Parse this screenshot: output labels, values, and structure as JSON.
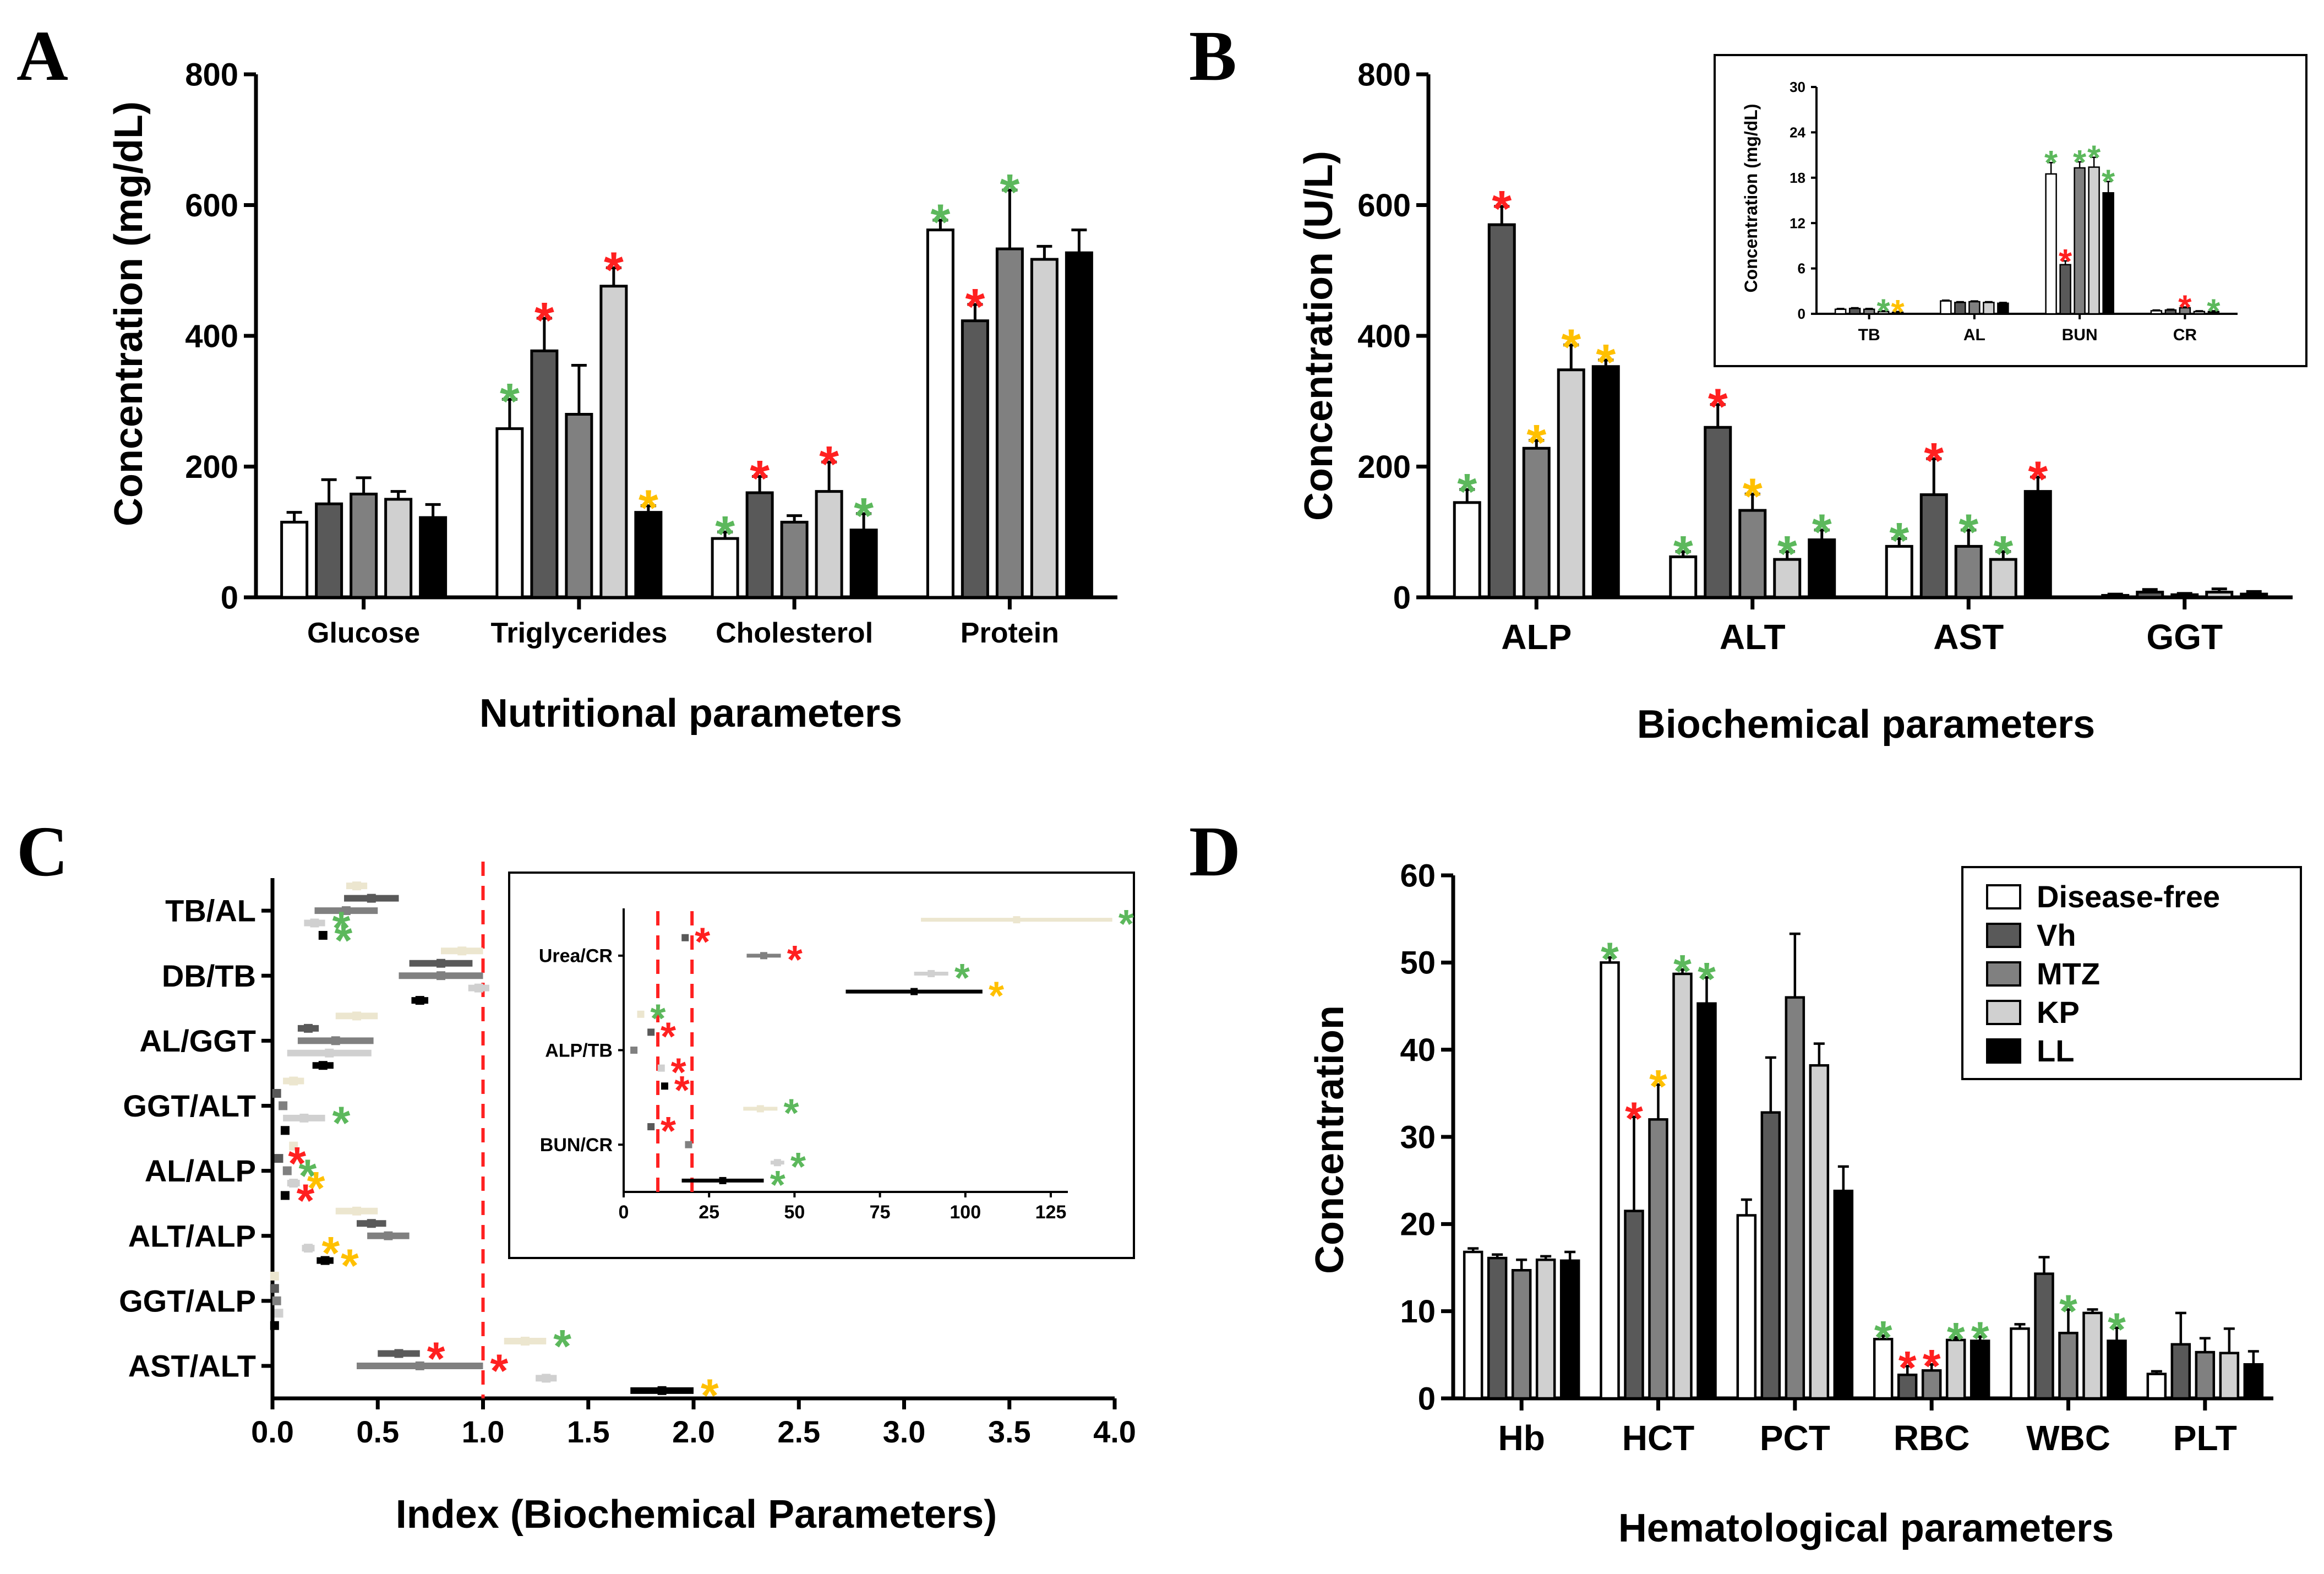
{
  "series_colors": {
    "Disease-free": "#ffffff",
    "Vh": "#595959",
    "MTZ": "#808080",
    "KP": "#d0d0d0",
    "LL": "#000000"
  },
  "star_colors": {
    "green": "#5cb85c",
    "red": "#ff2020",
    "yellow": "#ffc000"
  },
  "reference_line_color": "#ff2020",
  "chart_data": [
    {
      "panel": "A",
      "type": "bar",
      "xlabel": "Nutritional parameters",
      "ylabel": "Concentration (mg/dL)",
      "ylim": [
        0,
        800
      ],
      "yticks": [
        0,
        200,
        400,
        600,
        800
      ],
      "categories": [
        "Glucose",
        "Triglycerides",
        "Cholesterol",
        "Protein"
      ],
      "series": [
        {
          "name": "Disease-free",
          "values": [
            115,
            258,
            90,
            562
          ],
          "errors": [
            15,
            45,
            10,
            15
          ],
          "stars": [
            "",
            "green",
            "green",
            "green"
          ]
        },
        {
          "name": "Vh",
          "values": [
            143,
            377,
            160,
            423
          ],
          "errors": [
            37,
            50,
            25,
            25
          ],
          "stars": [
            "",
            "red",
            "red",
            "red"
          ]
        },
        {
          "name": "MTZ",
          "values": [
            158,
            280,
            115,
            533
          ],
          "errors": [
            25,
            75,
            10,
            90
          ],
          "stars": [
            "",
            "",
            "",
            "green"
          ]
        },
        {
          "name": "KP",
          "values": [
            150,
            476,
            162,
            517
          ],
          "errors": [
            12,
            28,
            45,
            20
          ],
          "stars": [
            "",
            "red",
            "red",
            ""
          ]
        },
        {
          "name": "LL",
          "values": [
            122,
            130,
            103,
            527
          ],
          "errors": [
            20,
            10,
            25,
            35
          ],
          "stars": [
            "",
            "yellow",
            "green",
            ""
          ]
        }
      ]
    },
    {
      "panel": "B",
      "type": "bar",
      "xlabel": "Biochemical parameters",
      "ylabel": "Concentration (U/L)",
      "ylim": [
        0,
        800
      ],
      "yticks": [
        0,
        200,
        400,
        600,
        800
      ],
      "categories": [
        "ALP",
        "ALT",
        "AST",
        "GGT"
      ],
      "series": [
        {
          "name": "Disease-free",
          "values": [
            145,
            62,
            78,
            3
          ],
          "errors": [
            20,
            8,
            12,
            2
          ],
          "stars": [
            "green",
            "green",
            "green",
            ""
          ]
        },
        {
          "name": "Vh",
          "values": [
            570,
            260,
            157,
            8
          ],
          "errors": [
            28,
            35,
            55,
            4
          ],
          "stars": [
            "red",
            "red",
            "red",
            ""
          ]
        },
        {
          "name": "MTZ",
          "values": [
            228,
            133,
            78,
            4
          ],
          "errors": [
            12,
            25,
            25,
            2
          ],
          "stars": [
            "yellow",
            "yellow",
            "green",
            ""
          ]
        },
        {
          "name": "KP",
          "values": [
            348,
            58,
            58,
            8
          ],
          "errors": [
            38,
            12,
            12,
            5
          ],
          "stars": [
            "yellow",
            "green",
            "green",
            ""
          ]
        },
        {
          "name": "LL",
          "values": [
            353,
            88,
            162,
            5
          ],
          "errors": [
            10,
            15,
            22,
            4
          ],
          "stars": [
            "yellow",
            "green",
            "red",
            ""
          ]
        }
      ]
    },
    {
      "panel": "B-inset",
      "type": "bar",
      "ylabel": "Concentration (mg/dL)",
      "ylim": [
        0,
        30
      ],
      "yticks": [
        0,
        6,
        12,
        18,
        24,
        30
      ],
      "categories": [
        "TB",
        "AL",
        "BUN",
        "CR"
      ],
      "series": [
        {
          "name": "Disease-free",
          "values": [
            0.6,
            1.7,
            18.5,
            0.4
          ],
          "errors": [
            0.1,
            0.1,
            1.5,
            0.1
          ],
          "stars": [
            "",
            "",
            "green",
            ""
          ]
        },
        {
          "name": "Vh",
          "values": [
            0.7,
            1.5,
            6.5,
            0.5
          ],
          "errors": [
            0.1,
            0.1,
            0.5,
            0.1
          ],
          "stars": [
            "",
            "",
            "red",
            ""
          ]
        },
        {
          "name": "MTZ",
          "values": [
            0.6,
            1.6,
            19.3,
            0.8
          ],
          "errors": [
            0.1,
            0.1,
            0.8,
            0.1
          ],
          "stars": [
            "",
            "",
            "green",
            "red"
          ]
        },
        {
          "name": "KP",
          "values": [
            0.3,
            1.5,
            19.4,
            0.3
          ],
          "errors": [
            0.1,
            0.1,
            1.3,
            0.1
          ],
          "stars": [
            "green",
            "",
            "green",
            ""
          ]
        },
        {
          "name": "LL",
          "values": [
            0.2,
            1.4,
            16,
            0.3
          ],
          "errors": [
            0.1,
            0.1,
            1.5,
            0.1
          ],
          "stars": [
            "yellow",
            "",
            "green",
            "green"
          ]
        }
      ]
    },
    {
      "panel": "C",
      "type": "scatter",
      "orientation": "horizontal",
      "xlabel": "Index (Biochemical Parameters)",
      "xlim": [
        0,
        4
      ],
      "xticks": [
        "0.0",
        "0.5",
        "1.0",
        "1.5",
        "2.0",
        "2.5",
        "3.0",
        "3.5",
        "4.0"
      ],
      "reference_lines": [
        1.0
      ],
      "categories": [
        "TB/AL",
        "DB/TB",
        "AL/GGT",
        "GGT/ALT",
        "AL/ALP",
        "ALT/ALP",
        "GGT/ALP",
        "AST/ALT"
      ],
      "series": [
        {
          "name": "Disease-free",
          "values": [
            0.4,
            0.9,
            0.4,
            0.1,
            0.1,
            0.4,
            0.01,
            1.2
          ],
          "errors": [
            0.05,
            0.1,
            0.1,
            0.05,
            0.02,
            0.1,
            0.01,
            0.1
          ],
          "stars": [
            "",
            "",
            "",
            "",
            "",
            "",
            "",
            "green"
          ]
        },
        {
          "name": "Vh",
          "values": [
            0.47,
            0.8,
            0.17,
            0.02,
            0.03,
            0.47,
            0.01,
            0.6
          ],
          "errors": [
            0.13,
            0.15,
            0.05,
            0.01,
            0.01,
            0.07,
            0.01,
            0.1
          ],
          "stars": [
            "",
            "",
            "",
            "",
            "red",
            "",
            "",
            "red"
          ]
        },
        {
          "name": "MTZ",
          "values": [
            0.35,
            0.8,
            0.3,
            0.05,
            0.07,
            0.55,
            0.02,
            0.7
          ],
          "errors": [
            0.15,
            0.2,
            0.18,
            0.02,
            0.02,
            0.1,
            0.01,
            0.3
          ],
          "stars": [
            "",
            "",
            "",
            "",
            "green",
            "",
            "",
            "red"
          ]
        },
        {
          "name": "KP",
          "values": [
            0.2,
            0.98,
            0.27,
            0.15,
            0.1,
            0.17,
            0.03,
            1.3
          ],
          "errors": [
            0.05,
            0.05,
            0.2,
            0.1,
            0.03,
            0.03,
            0.01,
            0.05
          ],
          "stars": [
            "green",
            "",
            "",
            "green",
            "yellow",
            "yellow",
            "",
            ""
          ]
        },
        {
          "name": "LL",
          "values": [
            0.24,
            0.7,
            0.24,
            0.06,
            0.06,
            0.25,
            0.01,
            1.85
          ],
          "errors": [
            0.02,
            0.04,
            0.05,
            0.01,
            0.02,
            0.04,
            0.01,
            0.15
          ],
          "stars": [
            "green",
            "",
            "",
            "",
            "red",
            "yellow",
            "",
            "yellow"
          ]
        }
      ]
    },
    {
      "panel": "C-inset",
      "type": "scatter",
      "orientation": "horizontal",
      "xlim": [
        0,
        130
      ],
      "xticks": [
        0,
        25,
        50,
        75,
        100,
        125
      ],
      "reference_lines": [
        10,
        20
      ],
      "categories": [
        "Urea/CR",
        "ALP/TB",
        "BUN/CR"
      ],
      "series": [
        {
          "name": "Disease-free",
          "values": [
            115,
            5,
            40
          ],
          "errors": [
            28,
            1,
            5
          ],
          "stars": [
            "green",
            "green",
            "green"
          ]
        },
        {
          "name": "Vh",
          "values": [
            18,
            8,
            8
          ],
          "errors": [
            1,
            1,
            1
          ],
          "stars": [
            "red",
            "red",
            "red"
          ]
        },
        {
          "name": "MTZ",
          "values": [
            41,
            3,
            19
          ],
          "errors": [
            5,
            1,
            1
          ],
          "stars": [
            "red",
            "",
            ""
          ]
        },
        {
          "name": "KP",
          "values": [
            90,
            11,
            45
          ],
          "errors": [
            5,
            1,
            2
          ],
          "stars": [
            "green",
            "red",
            "green"
          ]
        },
        {
          "name": "LL",
          "values": [
            85,
            12,
            29
          ],
          "errors": [
            20,
            1,
            12
          ],
          "stars": [
            "yellow",
            "red",
            "green"
          ]
        }
      ]
    },
    {
      "panel": "D",
      "type": "bar",
      "xlabel": "Hematological parameters",
      "ylabel": "Concentration",
      "ylim": [
        0,
        60
      ],
      "yticks": [
        0,
        10,
        20,
        30,
        40,
        50,
        60
      ],
      "categories": [
        "Hb",
        "HCT",
        "PCT",
        "RBC",
        "WBC",
        "PLT"
      ],
      "legend": [
        "Disease-free",
        "Vh",
        "MTZ",
        "KP",
        "LL"
      ],
      "legend_position": "top-right",
      "series": [
        {
          "name": "Disease-free",
          "values": [
            16.8,
            50,
            21,
            6.8,
            8,
            2.8
          ],
          "errors": [
            0.4,
            0.6,
            1.8,
            0.4,
            0.5,
            0.3
          ],
          "stars": [
            "",
            "green",
            "",
            "green",
            "",
            ""
          ]
        },
        {
          "name": "Vh",
          "values": [
            16.1,
            21.5,
            32.8,
            2.7,
            14.3,
            6.2
          ],
          "errors": [
            0.4,
            10.8,
            6.3,
            1,
            1.9,
            3.6
          ],
          "stars": [
            "",
            "red",
            "",
            "red",
            "",
            ""
          ]
        },
        {
          "name": "MTZ",
          "values": [
            14.7,
            32,
            46,
            3.2,
            7.5,
            5.3
          ],
          "errors": [
            1.2,
            4,
            7.3,
            0.7,
            2.7,
            1.6
          ],
          "stars": [
            "",
            "yellow",
            "",
            "red",
            "green",
            ""
          ]
        },
        {
          "name": "KP",
          "values": [
            15.9,
            48.7,
            38.2,
            6.7,
            9.8,
            5.2
          ],
          "errors": [
            0.4,
            0.5,
            2.5,
            0.3,
            0.4,
            2.8
          ],
          "stars": [
            "",
            "green",
            "",
            "green",
            "",
            ""
          ]
        },
        {
          "name": "LL",
          "values": [
            15.8,
            45.3,
            23.8,
            6.6,
            6.6,
            3.9
          ],
          "errors": [
            1,
            3,
            2.8,
            0.5,
            1.5,
            1.5
          ],
          "stars": [
            "",
            "green",
            "",
            "green",
            "green",
            ""
          ]
        }
      ]
    }
  ],
  "panel_letters": [
    "A",
    "B",
    "C",
    "D"
  ]
}
